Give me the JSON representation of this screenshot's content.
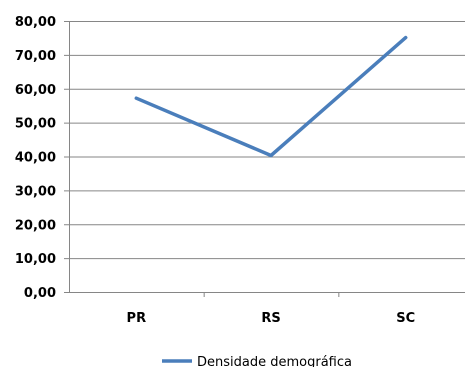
{
  "chart_data": {
    "type": "line",
    "categories": [
      "PR",
      "RS",
      "SC"
    ],
    "series": [
      {
        "name": "Densidade demográfica",
        "values": [
          57.2,
          40.3,
          75.1
        ],
        "color": "#4a7ebb"
      }
    ],
    "ylim": [
      0,
      80
    ],
    "yticks": [
      "0,00",
      "10,00",
      "20,00",
      "30,00",
      "40,00",
      "50,00",
      "60,00",
      "70,00",
      "80,00"
    ],
    "grid": true,
    "gridlines_color": "#868686",
    "legend_position": "bottom"
  }
}
